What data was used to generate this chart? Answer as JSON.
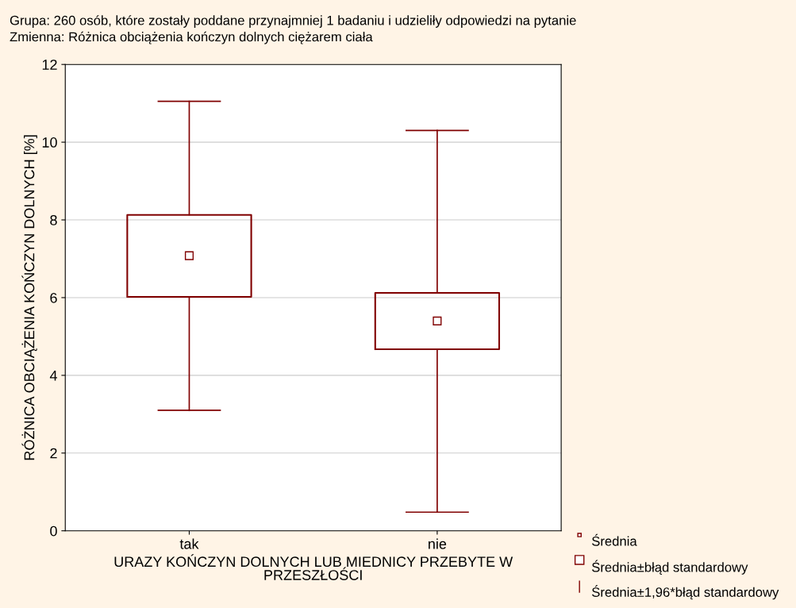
{
  "chart_data": {
    "type": "box",
    "title": "Grupa: 260 osób, które zostały poddane przynajmniej 1 badaniu i udzieliły odpowiedzi na pytanie",
    "subtitle": "Zmienna: Różnica obciążenia kończyn dolnych ciężarem ciała",
    "xlabel": "URAZY KOŃCZYN DOLNYCH LUB MIEDNICY PRZEBYTE W\nPRZESZŁOŚCI",
    "ylabel": "RÓŻNICA OBCIĄŻENIA KOŃCZYN DOLNYCH [%]",
    "categories": [
      "tak",
      "nie"
    ],
    "series": [
      {
        "color": "#800000",
        "boxes": [
          {
            "low": 3.1,
            "q1": 6.02,
            "median": 7.08,
            "q3": 8.13,
            "high": 11.05
          },
          {
            "low": 0.48,
            "q1": 4.67,
            "median": 5.4,
            "q3": 6.12,
            "high": 10.3
          }
        ]
      }
    ],
    "ylim": [
      0,
      12
    ],
    "yticks": [
      0,
      2,
      4,
      6,
      8,
      10,
      12
    ],
    "grid": "y",
    "annotations": [
      "Średnia",
      "Średnia±błąd standardowy",
      "Średnia±1,96*błąd standardowy"
    ]
  }
}
